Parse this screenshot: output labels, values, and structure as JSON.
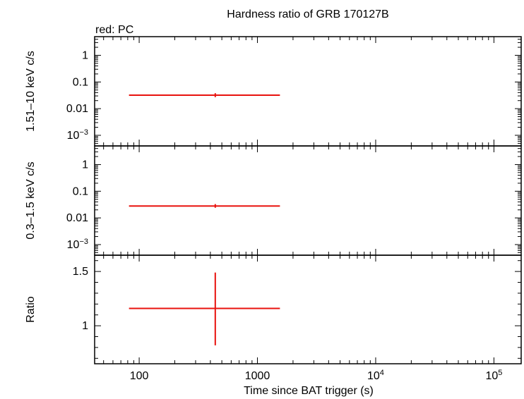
{
  "chart_data": {
    "type": "scatter",
    "title": "Hardness ratio of GRB 170127B",
    "legend_note": "red: PC",
    "xlabel": "Time since BAT trigger (s)",
    "x_scale": "log",
    "xlim": [
      42,
      170000
    ],
    "x_ticks": [
      {
        "value": 100,
        "label": "100",
        "sup": ""
      },
      {
        "value": 1000,
        "label": "1000",
        "sup": ""
      },
      {
        "value": 10000,
        "label": "10",
        "sup": "4"
      },
      {
        "value": 100000,
        "label": "10",
        "sup": "5"
      }
    ],
    "series_color": "#e8120e",
    "panels": [
      {
        "id": "hard",
        "ylabel": "1.51–10 keV c/s",
        "y_scale": "log",
        "ylim": [
          0.0004,
          5
        ],
        "y_ticks": [
          {
            "value": 1,
            "label": "1",
            "sup": ""
          },
          {
            "value": 0.1,
            "label": "0.1",
            "sup": ""
          },
          {
            "value": 0.01,
            "label": "0.01",
            "sup": ""
          },
          {
            "value": 0.001,
            "label": "10",
            "sup": "−3"
          }
        ],
        "points": [
          {
            "x": 440,
            "xmin": 82,
            "xmax": 1550,
            "y": 0.032,
            "ymin": 0.027,
            "ymax": 0.038
          }
        ]
      },
      {
        "id": "soft",
        "ylabel": "0.3–1.5 keV c/s",
        "y_scale": "log",
        "ylim": [
          0.0004,
          5
        ],
        "y_ticks": [
          {
            "value": 1,
            "label": "1",
            "sup": ""
          },
          {
            "value": 0.1,
            "label": "0.1",
            "sup": ""
          },
          {
            "value": 0.01,
            "label": "0.01",
            "sup": ""
          },
          {
            "value": 0.001,
            "label": "10",
            "sup": "−3"
          }
        ],
        "points": [
          {
            "x": 440,
            "xmin": 82,
            "xmax": 1550,
            "y": 0.028,
            "ymin": 0.024,
            "ymax": 0.033
          }
        ]
      },
      {
        "id": "ratio",
        "ylabel": "Ratio",
        "y_scale": "linear",
        "ylim": [
          0.65,
          1.65
        ],
        "y_ticks": [
          {
            "value": 1.5,
            "label": "1.5",
            "sup": ""
          },
          {
            "value": 1,
            "label": "1",
            "sup": ""
          }
        ],
        "points": [
          {
            "x": 440,
            "xmin": 82,
            "xmax": 1550,
            "y": 1.16,
            "ymin": 0.82,
            "ymax": 1.49
          }
        ]
      }
    ]
  }
}
